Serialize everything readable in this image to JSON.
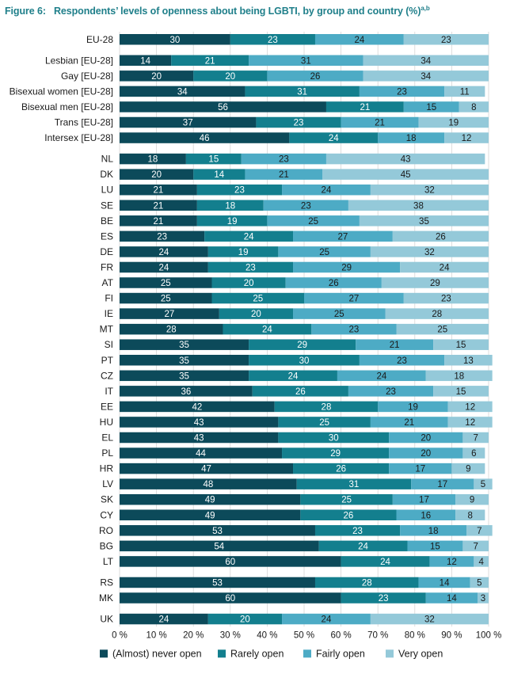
{
  "chart_data": {
    "type": "bar",
    "orientation": "horizontal",
    "stacked": true,
    "title": "Figure 6:   Respondents’ levels of openness about being LGBTI, by group and country (%)",
    "title_superscript": "a,b",
    "categories": [
      "EU-28",
      "Lesbian [EU-28]",
      "Gay [EU-28]",
      "Bisexual women [EU-28]",
      "Bisexual men [EU-28]",
      "Trans [EU-28]",
      "Intersex [EU-28]",
      "NL",
      "DK",
      "LU",
      "SE",
      "BE",
      "ES",
      "DE",
      "FR",
      "AT",
      "FI",
      "IE",
      "MT",
      "SI",
      "PT",
      "CZ",
      "IT",
      "EE",
      "HU",
      "EL",
      "PL",
      "HR",
      "LV",
      "SK",
      "CY",
      "RO",
      "BG",
      "LT",
      "RS",
      "MK",
      "UK"
    ],
    "groups": [
      1,
      6,
      27,
      2,
      1
    ],
    "series": [
      {
        "name": "(Almost) never open",
        "color": "#0c4a5a",
        "values": [
          30,
          14,
          20,
          34,
          56,
          37,
          46,
          18,
          20,
          21,
          21,
          21,
          23,
          24,
          24,
          25,
          25,
          27,
          28,
          35,
          35,
          35,
          36,
          42,
          43,
          43,
          44,
          47,
          48,
          49,
          49,
          53,
          54,
          60,
          53,
          60,
          24
        ]
      },
      {
        "name": "Rarely open",
        "color": "#137f8e",
        "values": [
          23,
          21,
          20,
          31,
          21,
          23,
          24,
          15,
          14,
          23,
          18,
          19,
          24,
          19,
          23,
          20,
          25,
          20,
          24,
          29,
          30,
          24,
          26,
          28,
          25,
          30,
          29,
          26,
          31,
          25,
          26,
          23,
          24,
          24,
          28,
          23,
          20
        ]
      },
      {
        "name": "Fairly open",
        "color": "#4dabc5",
        "values": [
          24,
          31,
          26,
          23,
          15,
          21,
          18,
          23,
          21,
          24,
          23,
          25,
          27,
          25,
          29,
          26,
          27,
          25,
          23,
          21,
          23,
          24,
          23,
          19,
          21,
          20,
          20,
          17,
          17,
          17,
          16,
          18,
          15,
          12,
          14,
          14,
          24
        ]
      },
      {
        "name": "Very open",
        "color": "#94c9d9",
        "values": [
          23,
          34,
          34,
          11,
          8,
          19,
          12,
          43,
          45,
          32,
          38,
          35,
          26,
          32,
          24,
          29,
          23,
          28,
          25,
          15,
          13,
          18,
          15,
          12,
          12,
          7,
          6,
          9,
          5,
          9,
          8,
          7,
          7,
          4,
          5,
          3,
          32
        ]
      }
    ],
    "xlim": [
      0,
      100
    ],
    "xticks": [
      "0 %",
      "10 %",
      "20 %",
      "30 %",
      "40 %",
      "50 %",
      "60 %",
      "70 %",
      "80 %",
      "90 %",
      "100 %"
    ],
    "legend_position": "bottom"
  }
}
